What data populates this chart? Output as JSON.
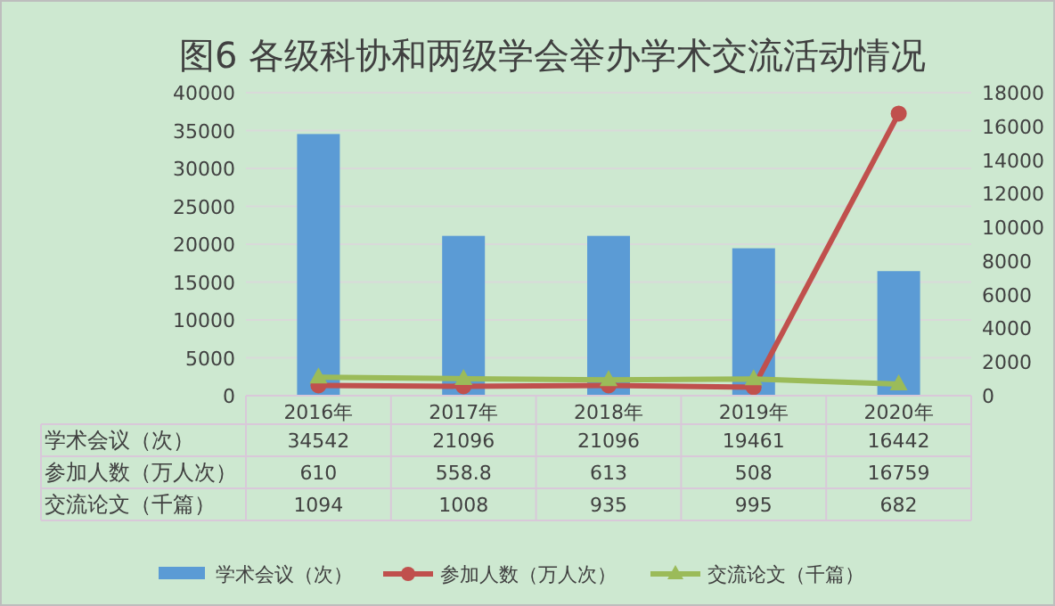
{
  "chart_data": {
    "type": "bar",
    "title": "图6 各级科协和两级学会举办学术交流活动情况",
    "categories": [
      "2016年",
      "2017年",
      "2018年",
      "2019年",
      "2020年"
    ],
    "series": [
      {
        "name": "学术会议（次）",
        "color": "#5b9bd5",
        "values": [
          34542,
          21096,
          21096,
          19461,
          16442
        ]
      },
      {
        "name": "参加人数（万人次）",
        "type": "line",
        "axis": "y2",
        "color": "#c0504d",
        "marker": "circle",
        "values": [
          610,
          558.8,
          613,
          508,
          16759
        ]
      },
      {
        "name": "交流论文（千篇）",
        "type": "line",
        "axis": "y2",
        "color": "#9bbb59",
        "marker": "triangle",
        "values": [
          1094,
          1008,
          935,
          995,
          682
        ]
      }
    ],
    "ylim": [
      0,
      40000
    ],
    "yticks": [
      0,
      5000,
      10000,
      15000,
      20000,
      25000,
      30000,
      35000,
      40000
    ],
    "y2lim": [
      0,
      18000
    ],
    "y2ticks": [
      0,
      2000,
      4000,
      6000,
      8000,
      10000,
      12000,
      14000,
      16000,
      18000
    ],
    "grid": "y",
    "legend": "bottom",
    "data_labels": true
  }
}
